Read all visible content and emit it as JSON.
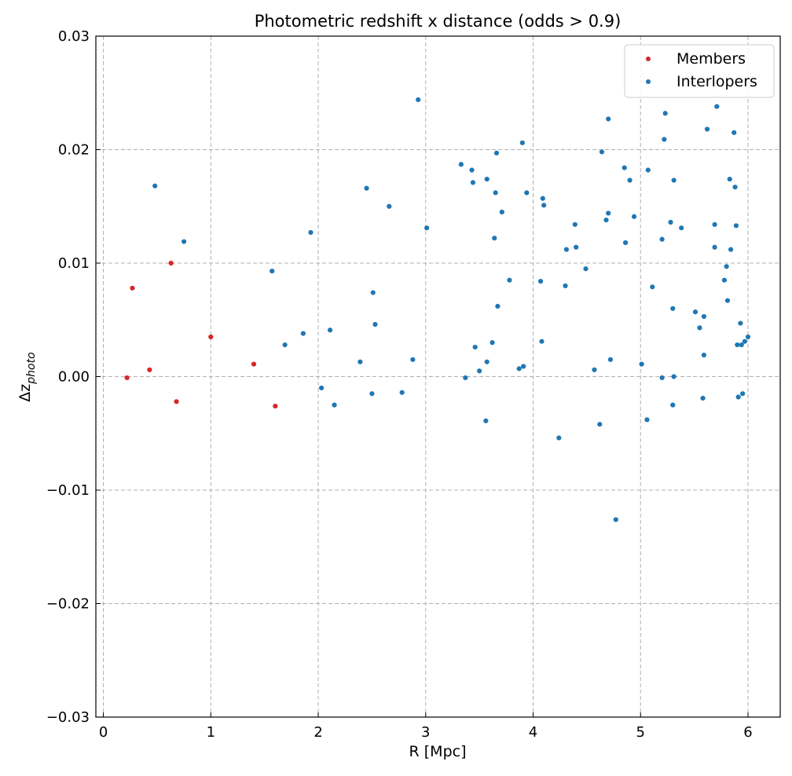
{
  "chart_data": {
    "type": "scatter",
    "title": "Photometric redshift x distance (odds > 0.9)",
    "xlabel": "R [Mpc]",
    "ylabel_base": "Δz",
    "ylabel_subscript": "photo",
    "xlim": [
      -0.07,
      6.3
    ],
    "ylim": [
      -0.03,
      0.03
    ],
    "x_ticks": [
      {
        "value": 0,
        "label": "0"
      },
      {
        "value": 1,
        "label": "1"
      },
      {
        "value": 2,
        "label": "2"
      },
      {
        "value": 3,
        "label": "3"
      },
      {
        "value": 4,
        "label": "4"
      },
      {
        "value": 5,
        "label": "5"
      },
      {
        "value": 6,
        "label": "6"
      }
    ],
    "y_ticks": [
      {
        "value": -0.03,
        "label": "−0.03"
      },
      {
        "value": -0.02,
        "label": "−0.02"
      },
      {
        "value": -0.01,
        "label": "−0.01"
      },
      {
        "value": 0.0,
        "label": "0.00"
      },
      {
        "value": 0.01,
        "label": "0.01"
      },
      {
        "value": 0.02,
        "label": "0.02"
      },
      {
        "value": 0.03,
        "label": "0.03"
      }
    ],
    "grid": true,
    "legend_position": "top-right",
    "series": [
      {
        "name": "Members",
        "color": "#d62728",
        "points": [
          [
            0.22,
            -0.0001
          ],
          [
            0.27,
            0.0078
          ],
          [
            0.43,
            0.0006
          ],
          [
            0.63,
            0.01
          ],
          [
            0.68,
            -0.0022
          ],
          [
            1.0,
            0.0035
          ],
          [
            1.4,
            0.0011
          ],
          [
            1.6,
            -0.0026
          ]
        ]
      },
      {
        "name": "Interlopers",
        "color": "#1f77b4",
        "points": [
          [
            0.48,
            0.0168
          ],
          [
            0.75,
            0.0119
          ],
          [
            1.57,
            0.0093
          ],
          [
            1.69,
            0.0028
          ],
          [
            1.86,
            0.0038
          ],
          [
            1.93,
            0.0127
          ],
          [
            2.03,
            -0.001
          ],
          [
            2.11,
            0.0041
          ],
          [
            2.15,
            -0.0025
          ],
          [
            2.39,
            0.0013
          ],
          [
            2.45,
            0.0166
          ],
          [
            2.5,
            -0.0015
          ],
          [
            2.51,
            0.0074
          ],
          [
            2.53,
            0.0046
          ],
          [
            2.66,
            0.015
          ],
          [
            2.78,
            -0.0014
          ],
          [
            2.88,
            0.0015
          ],
          [
            2.93,
            0.0244
          ],
          [
            3.01,
            0.0131
          ],
          [
            3.33,
            0.0187
          ],
          [
            3.37,
            -0.0001
          ],
          [
            3.43,
            0.0182
          ],
          [
            3.44,
            0.0171
          ],
          [
            3.46,
            0.0026
          ],
          [
            3.5,
            0.0005
          ],
          [
            3.56,
            -0.0039
          ],
          [
            3.57,
            0.0013
          ],
          [
            3.57,
            0.0174
          ],
          [
            3.62,
            0.003
          ],
          [
            3.64,
            0.0122
          ],
          [
            3.65,
            0.0162
          ],
          [
            3.66,
            0.0197
          ],
          [
            3.67,
            0.0062
          ],
          [
            3.71,
            0.0145
          ],
          [
            3.78,
            0.0085
          ],
          [
            3.87,
            0.0007
          ],
          [
            3.9,
            0.0206
          ],
          [
            3.91,
            0.0009
          ],
          [
            3.94,
            0.0162
          ],
          [
            4.07,
            0.0084
          ],
          [
            4.08,
            0.0031
          ],
          [
            4.09,
            0.0157
          ],
          [
            4.1,
            0.0151
          ],
          [
            4.24,
            -0.0054
          ],
          [
            4.3,
            0.008
          ],
          [
            4.31,
            0.0112
          ],
          [
            4.39,
            0.0134
          ],
          [
            4.4,
            0.0114
          ],
          [
            4.49,
            0.0095
          ],
          [
            4.57,
            0.0006
          ],
          [
            4.62,
            -0.0042
          ],
          [
            4.64,
            0.0198
          ],
          [
            4.68,
            0.0138
          ],
          [
            4.7,
            0.0144
          ],
          [
            4.7,
            0.0227
          ],
          [
            4.72,
            0.0015
          ],
          [
            4.77,
            -0.0126
          ],
          [
            4.85,
            0.0184
          ],
          [
            4.86,
            0.0118
          ],
          [
            4.9,
            0.0173
          ],
          [
            4.94,
            0.0141
          ],
          [
            5.01,
            0.0011
          ],
          [
            5.06,
            -0.0038
          ],
          [
            5.07,
            0.0182
          ],
          [
            5.11,
            0.0079
          ],
          [
            5.2,
            0.0121
          ],
          [
            5.2,
            -0.0001
          ],
          [
            5.22,
            0.0209
          ],
          [
            5.23,
            0.0232
          ],
          [
            5.28,
            0.0136
          ],
          [
            5.3,
            0.006
          ],
          [
            5.3,
            -0.0025
          ],
          [
            5.31,
            0.0173
          ],
          [
            5.31,
            0.0
          ],
          [
            5.38,
            0.0131
          ],
          [
            5.51,
            0.0057
          ],
          [
            5.55,
            0.0043
          ],
          [
            5.58,
            -0.0019
          ],
          [
            5.59,
            0.0019
          ],
          [
            5.59,
            0.0053
          ],
          [
            5.62,
            0.0218
          ],
          [
            5.69,
            0.0134
          ],
          [
            5.69,
            0.0114
          ],
          [
            5.71,
            0.0238
          ],
          [
            5.78,
            0.0085
          ],
          [
            5.8,
            0.0097
          ],
          [
            5.81,
            0.0067
          ],
          [
            5.83,
            0.0174
          ],
          [
            5.84,
            0.0112
          ],
          [
            5.87,
            0.0215
          ],
          [
            5.88,
            0.0167
          ],
          [
            5.89,
            0.0133
          ],
          [
            5.9,
            0.0028
          ],
          [
            5.91,
            -0.0018
          ],
          [
            5.93,
            0.0047
          ],
          [
            5.94,
            0.0028
          ],
          [
            5.95,
            -0.0015
          ],
          [
            5.97,
            0.0031
          ],
          [
            6.0,
            0.0035
          ]
        ]
      }
    ]
  }
}
